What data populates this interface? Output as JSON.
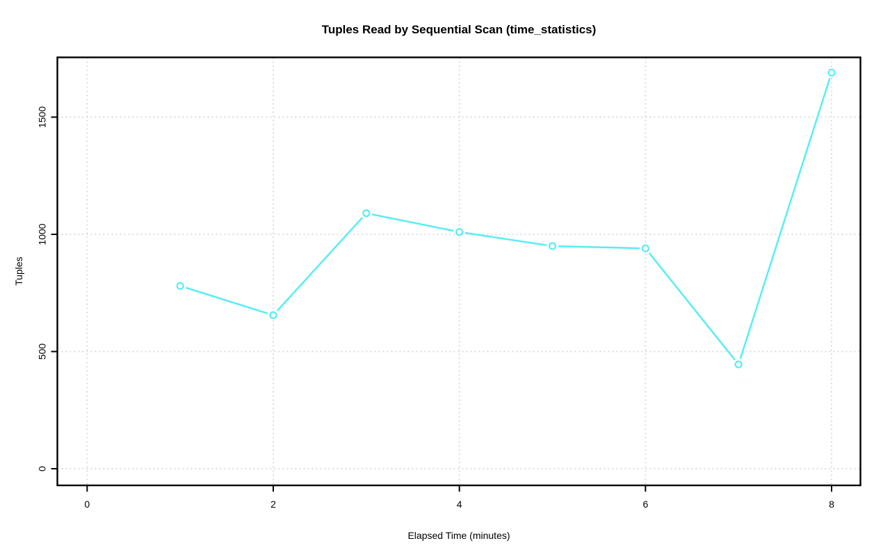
{
  "title": "Tuples Read by Sequential Scan (time_statistics)",
  "chart_data": {
    "type": "line",
    "title": "Tuples Read by Sequential Scan (time_statistics)",
    "xlabel": "Elapsed Time (minutes)",
    "ylabel": "Tuples",
    "x": [
      1,
      2,
      3,
      4,
      5,
      6,
      7,
      8
    ],
    "values": [
      780,
      655,
      1090,
      1010,
      950,
      940,
      445,
      1690
    ],
    "x_ticks": [
      0,
      2,
      4,
      6,
      8
    ],
    "y_ticks": [
      0,
      500,
      1000,
      1500
    ],
    "xlim": [
      -0.32,
      8.31
    ],
    "ylim": [
      -71,
      1755
    ],
    "grid": true,
    "grid_style": "dotted",
    "legend": false,
    "marker": "open-circle",
    "line_type": "b",
    "series_color": "#58edf5",
    "grid_color": "#d4d4d4",
    "axis_color": "#000000",
    "background_color": "#ffffff"
  }
}
